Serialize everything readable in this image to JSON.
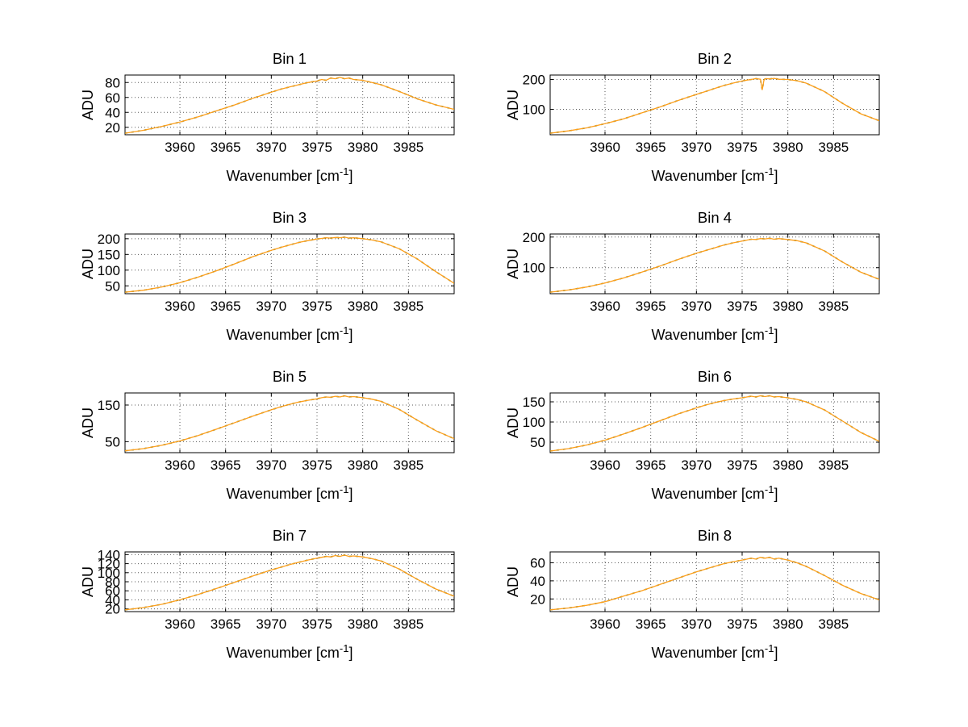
{
  "page": {
    "background": "#ffffff"
  },
  "colors": {
    "line": "#ff9f1a",
    "underlay": "#3f6b1f",
    "grid": "#5a5a5a",
    "axis": "#000000",
    "text": "#000000"
  },
  "chart_data": [
    {
      "type": "line",
      "title": "Bin 1",
      "xlabel": "Wavenumber [cm⁻¹]",
      "ylabel": "ADU",
      "xlim": [
        3954,
        3990
      ],
      "ylim": [
        10,
        90
      ],
      "xticks": [
        3960,
        3965,
        3970,
        3975,
        3980,
        3985
      ],
      "yticks": [
        20,
        40,
        60,
        80
      ],
      "grid": true,
      "legend": "none",
      "x": [
        3954,
        3956,
        3958,
        3960,
        3962,
        3964,
        3966,
        3968,
        3970,
        3971,
        3972,
        3973,
        3974,
        3975,
        3975.5,
        3976,
        3976.5,
        3977,
        3977.5,
        3978,
        3978.5,
        3979,
        3980,
        3981,
        3982,
        3984,
        3986,
        3988,
        3990
      ],
      "y": [
        12,
        16,
        21,
        27,
        34,
        42,
        50,
        59,
        67,
        71,
        74,
        77,
        80,
        82,
        84,
        83,
        86,
        85,
        87,
        85,
        86,
        84,
        83,
        80,
        77,
        68,
        58,
        50,
        44
      ]
    },
    {
      "type": "line",
      "title": "Bin 2",
      "xlabel": "Wavenumber [cm⁻¹]",
      "ylabel": "ADU",
      "xlim": [
        3954,
        3990
      ],
      "ylim": [
        15,
        215
      ],
      "xticks": [
        3960,
        3965,
        3970,
        3975,
        3980,
        3985
      ],
      "yticks": [
        100,
        200
      ],
      "grid": true,
      "legend": "none",
      "x": [
        3954,
        3956,
        3958,
        3960,
        3962,
        3964,
        3966,
        3968,
        3970,
        3971,
        3972,
        3973,
        3974,
        3975,
        3975.5,
        3976,
        3976.5,
        3977,
        3977.2,
        3977.4,
        3977.6,
        3978,
        3978.5,
        3979,
        3980,
        3981,
        3982,
        3984,
        3986,
        3988,
        3990
      ],
      "y": [
        20,
        28,
        38,
        52,
        68,
        88,
        108,
        130,
        150,
        160,
        170,
        180,
        188,
        195,
        198,
        200,
        203,
        201,
        165,
        200,
        203,
        202,
        204,
        201,
        200,
        196,
        188,
        160,
        120,
        85,
        62
      ]
    },
    {
      "type": "line",
      "title": "Bin 3",
      "xlabel": "Wavenumber [cm⁻¹]",
      "ylabel": "ADU",
      "xlim": [
        3954,
        3990
      ],
      "ylim": [
        25,
        215
      ],
      "xticks": [
        3960,
        3965,
        3970,
        3975,
        3980,
        3985
      ],
      "yticks": [
        50,
        100,
        150,
        200
      ],
      "grid": true,
      "legend": "none",
      "x": [
        3954,
        3956,
        3958,
        3960,
        3962,
        3964,
        3966,
        3968,
        3970,
        3971,
        3972,
        3973,
        3974,
        3975,
        3975.5,
        3976,
        3976.5,
        3977,
        3977.5,
        3978,
        3978.5,
        3979,
        3980,
        3981,
        3982,
        3984,
        3986,
        3988,
        3990
      ],
      "y": [
        30,
        36,
        46,
        60,
        78,
        98,
        120,
        143,
        163,
        172,
        180,
        188,
        194,
        199,
        201,
        203,
        202,
        204,
        203,
        205,
        202,
        203,
        200,
        196,
        190,
        168,
        135,
        95,
        58
      ]
    },
    {
      "type": "line",
      "title": "Bin 4",
      "xlabel": "Wavenumber [cm⁻¹]",
      "ylabel": "ADU",
      "xlim": [
        3954,
        3990
      ],
      "ylim": [
        15,
        210
      ],
      "xticks": [
        3960,
        3965,
        3970,
        3975,
        3980,
        3985
      ],
      "yticks": [
        100,
        200
      ],
      "grid": true,
      "legend": "none",
      "x": [
        3954,
        3956,
        3958,
        3960,
        3962,
        3964,
        3966,
        3968,
        3970,
        3971,
        3972,
        3973,
        3974,
        3975,
        3975.5,
        3976,
        3976.5,
        3977,
        3977.5,
        3978,
        3978.5,
        3979,
        3980,
        3981,
        3982,
        3984,
        3986,
        3988,
        3990
      ],
      "y": [
        20,
        27,
        37,
        50,
        66,
        85,
        105,
        127,
        147,
        156,
        165,
        174,
        181,
        187,
        190,
        193,
        192,
        195,
        194,
        196,
        193,
        195,
        192,
        188,
        181,
        155,
        118,
        85,
        62
      ]
    },
    {
      "type": "line",
      "title": "Bin 5",
      "xlabel": "Wavenumber [cm⁻¹]",
      "ylabel": "ADU",
      "xlim": [
        3954,
        3990
      ],
      "ylim": [
        20,
        183
      ],
      "xticks": [
        3960,
        3965,
        3970,
        3975,
        3980,
        3985
      ],
      "yticks": [
        50,
        150
      ],
      "grid": true,
      "legend": "none",
      "x": [
        3954,
        3956,
        3958,
        3960,
        3962,
        3964,
        3966,
        3968,
        3970,
        3971,
        3972,
        3973,
        3974,
        3975,
        3975.5,
        3976,
        3976.5,
        3977,
        3977.5,
        3978,
        3978.5,
        3979,
        3980,
        3981,
        3982,
        3984,
        3986,
        3988,
        3990
      ],
      "y": [
        25,
        31,
        40,
        52,
        67,
        84,
        102,
        120,
        137,
        145,
        152,
        158,
        163,
        167,
        170,
        172,
        171,
        174,
        172,
        175,
        172,
        173,
        170,
        166,
        160,
        138,
        108,
        80,
        58
      ]
    },
    {
      "type": "line",
      "title": "Bin 6",
      "xlabel": "Wavenumber [cm⁻¹]",
      "ylabel": "ADU",
      "xlim": [
        3954,
        3990
      ],
      "ylim": [
        24,
        172
      ],
      "xticks": [
        3960,
        3965,
        3970,
        3975,
        3980,
        3985
      ],
      "yticks": [
        50,
        100,
        150
      ],
      "grid": true,
      "legend": "none",
      "x": [
        3954,
        3956,
        3958,
        3960,
        3962,
        3964,
        3966,
        3968,
        3970,
        3971,
        3972,
        3973,
        3974,
        3975,
        3975.5,
        3976,
        3976.5,
        3977,
        3977.5,
        3978,
        3978.5,
        3979,
        3980,
        3981,
        3982,
        3984,
        3986,
        3988,
        3990
      ],
      "y": [
        28,
        34,
        43,
        55,
        70,
        86,
        103,
        120,
        135,
        142,
        148,
        153,
        157,
        160,
        162,
        164,
        162,
        165,
        163,
        165,
        162,
        163,
        160,
        156,
        150,
        130,
        102,
        74,
        52
      ]
    },
    {
      "type": "line",
      "title": "Bin 7",
      "xlabel": "Wavenumber [cm⁻¹]",
      "ylabel": "ADU",
      "xlim": [
        3954,
        3990
      ],
      "ylim": [
        14,
        146
      ],
      "xticks": [
        3960,
        3965,
        3970,
        3975,
        3980,
        3985
      ],
      "yticks": [
        20,
        40,
        60,
        80,
        100,
        120,
        140
      ],
      "grid": true,
      "legend": "none",
      "x": [
        3954,
        3956,
        3958,
        3960,
        3962,
        3964,
        3966,
        3968,
        3970,
        3971,
        3972,
        3973,
        3974,
        3975,
        3975.5,
        3976,
        3976.5,
        3977,
        3977.5,
        3978,
        3978.5,
        3979,
        3980,
        3981,
        3982,
        3984,
        3986,
        3988,
        3990
      ],
      "y": [
        18,
        23,
        30,
        40,
        52,
        65,
        79,
        93,
        106,
        112,
        118,
        123,
        128,
        132,
        134,
        136,
        135,
        138,
        136,
        139,
        136,
        137,
        135,
        131,
        126,
        108,
        85,
        64,
        48
      ]
    },
    {
      "type": "line",
      "title": "Bin 8",
      "xlabel": "Wavenumber [cm⁻¹]",
      "ylabel": "ADU",
      "xlim": [
        3954,
        3990
      ],
      "ylim": [
        6,
        72
      ],
      "xticks": [
        3960,
        3965,
        3970,
        3975,
        3980,
        3985
      ],
      "yticks": [
        20,
        40,
        60
      ],
      "grid": true,
      "legend": "none",
      "x": [
        3954,
        3956,
        3958,
        3960,
        3962,
        3964,
        3966,
        3968,
        3970,
        3971,
        3972,
        3973,
        3974,
        3975,
        3975.5,
        3976,
        3976.5,
        3977,
        3977.5,
        3978,
        3978.5,
        3979,
        3980,
        3981,
        3982,
        3984,
        3986,
        3988,
        3990
      ],
      "y": [
        8,
        10,
        13,
        17,
        23,
        29,
        36,
        43,
        50,
        53,
        56,
        59,
        61,
        63,
        64,
        65,
        64,
        66,
        65,
        66,
        64,
        65,
        63,
        60,
        56,
        46,
        35,
        26,
        19
      ]
    }
  ]
}
